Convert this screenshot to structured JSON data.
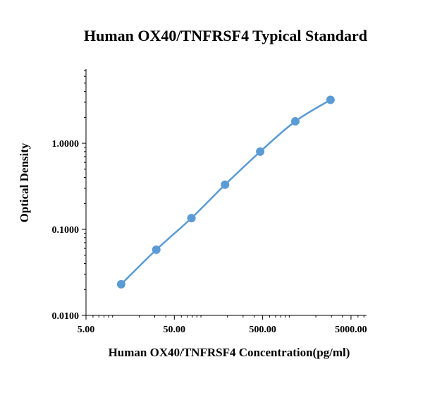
{
  "chart_data": {
    "type": "scatter",
    "title": "Human OX40/TNFRSF4 Typical Standard",
    "xlabel": "Human OX40/TNFRSF4 Concentration(pg/ml)",
    "ylabel": "Optical Density",
    "x_scale": "log",
    "y_scale": "log",
    "xlim": [
      5,
      7500
    ],
    "ylim": [
      0.01,
      7
    ],
    "x_ticks": [
      "5.00",
      "50.00",
      "500.00",
      "5000.00"
    ],
    "y_ticks": [
      "0.0100",
      "0.1000",
      "1.0000"
    ],
    "grid": false,
    "legend": "none",
    "series": [
      {
        "color": "#5b9bd5",
        "line": "smooth",
        "marker": "circle",
        "x": [
          12.5,
          31.25,
          78.125,
          187.5,
          468.75,
          1171.875,
          2929.6875
        ],
        "y": [
          0.023,
          0.058,
          0.135,
          0.33,
          0.8,
          1.8,
          3.2
        ]
      }
    ]
  }
}
